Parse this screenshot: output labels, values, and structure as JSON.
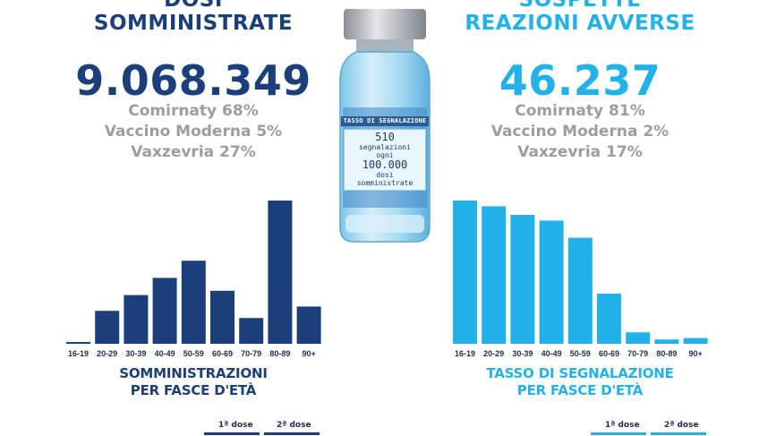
{
  "left_panel": {
    "heading_top": "DOSI",
    "heading": "SOMMINISTRATE",
    "total": "9.068.349",
    "brands": [
      "Comirnaty 68%",
      "Vaccino Moderna 5%",
      "Vaxzevria 27%"
    ],
    "chart_title_1": "SOMMINISTRAZIONI",
    "chart_title_2": "PER FASCE D'ETÀ",
    "legend": [
      "1ª dose",
      "2ª dose"
    ]
  },
  "right_panel": {
    "heading_top": "SOSPETTE",
    "heading": "REAZIONI AVVERSE",
    "total": "46.237",
    "brands": [
      "Comirnaty 81%",
      "Vaccino Moderna 2%",
      "Vaxzevria 17%"
    ],
    "chart_title_1": "TASSO DI SEGNALAZIONE",
    "chart_title_2": "PER FASCE D'ETÀ",
    "legend": [
      "1ª dose",
      "2ª dose"
    ]
  },
  "vial": {
    "title": "TASSO DI SEGNALAZIONE",
    "rate": "510",
    "line1": "segnalazioni",
    "line2": "ogni",
    "per": "100.000",
    "line3": "dosi",
    "line4": "somministrate"
  },
  "colors": {
    "dark_blue": "#1b3f7a",
    "light_blue": "#22b1ea",
    "grey_text": "#9d9d9d"
  },
  "chart_data": [
    {
      "type": "bar",
      "categories": [
        "16-19",
        "20-29",
        "30-39",
        "40-49",
        "50-59",
        "60-69",
        "70-79",
        "80-89",
        "90+"
      ],
      "values": [
        1,
        23,
        34,
        46,
        58,
        37,
        18,
        100,
        26
      ],
      "xlabel": "SOMMINISTRAZIONI PER FASCE D'ETÀ",
      "ylim": [
        0,
        100
      ],
      "grid": false,
      "color": "#1b3f7a"
    },
    {
      "type": "bar",
      "categories": [
        "16-19",
        "20-29",
        "30-39",
        "40-49",
        "50-59",
        "60-69",
        "70-79",
        "80-89",
        "90+"
      ],
      "values": [
        100,
        96,
        90,
        86,
        74,
        35,
        8,
        3,
        4
      ],
      "xlabel": "TASSO DI SEGNALAZIONE PER FASCE D'ETÀ",
      "ylim": [
        0,
        100
      ],
      "grid": false,
      "color": "#22b1ea"
    }
  ]
}
